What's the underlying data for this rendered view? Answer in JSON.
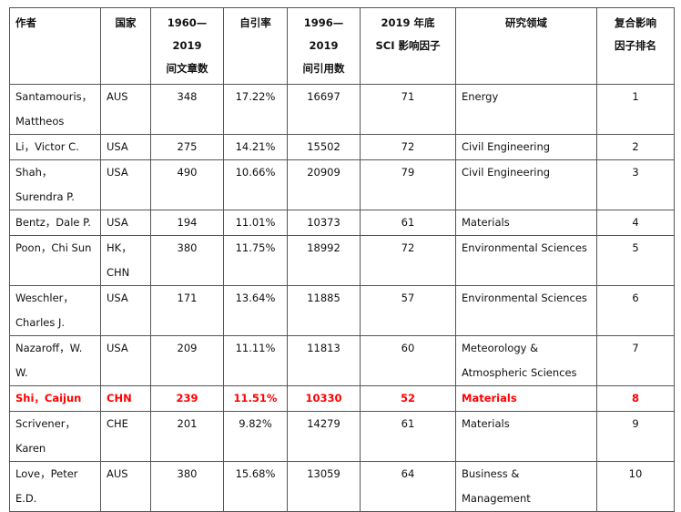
{
  "table": {
    "header": [
      [
        "作者"
      ],
      [
        "国家"
      ],
      [
        "1960—2019",
        "间文章数"
      ],
      [
        "自引率"
      ],
      [
        "1996—2019",
        "间引用数"
      ],
      [
        "2019 年底",
        "SCI 影响因子"
      ],
      [
        "研究领域"
      ],
      [
        "复合影响",
        "因子排名"
      ]
    ],
    "rows": [
      [
        "Santamouris，Mattheos",
        "AUS",
        "348",
        "17.22%",
        "16697",
        "71",
        "Energy",
        "1"
      ],
      [
        "Li，Victor C.",
        "USA",
        "275",
        "14.21%",
        "15502",
        "72",
        "Civil Engineering",
        "2"
      ],
      [
        "Shah，Surendra P.",
        "USA",
        "490",
        "10.66%",
        "20909",
        "79",
        "Civil Engineering",
        "3"
      ],
      [
        "Bentz，Dale P.",
        "USA",
        "194",
        "11.01%",
        "10373",
        "61",
        "Materials",
        "4"
      ],
      [
        "Poon，Chi Sun",
        "HK，CHN",
        "380",
        "11.75%",
        "18992",
        "72",
        "Environmental Sciences",
        "5"
      ],
      [
        "Weschler，Charles J.",
        "USA",
        "171",
        "13.64%",
        "11885",
        "57",
        "Environmental Sciences",
        "6"
      ],
      [
        "Nazaroff，W. W.",
        "USA",
        "209",
        "11.11%",
        "11813",
        "60",
        "Meteorology & Atmospheric Sciences",
        "7"
      ],
      [
        "Shi，Caijun",
        "CHN",
        "239",
        "11.51%",
        "10330",
        "52",
        "Materials",
        "8"
      ],
      [
        "Scrivener，Karen",
        "CHE",
        "201",
        "9.82%",
        "14279",
        "61",
        "Materials",
        "9"
      ],
      [
        "Love，Peter E.D.",
        "AUS",
        "380",
        "15.68%",
        "13059",
        "64",
        "Business & Management",
        "10"
      ]
    ],
    "highlight_row": 7,
    "highlight_color": "#ff0000"
  }
}
